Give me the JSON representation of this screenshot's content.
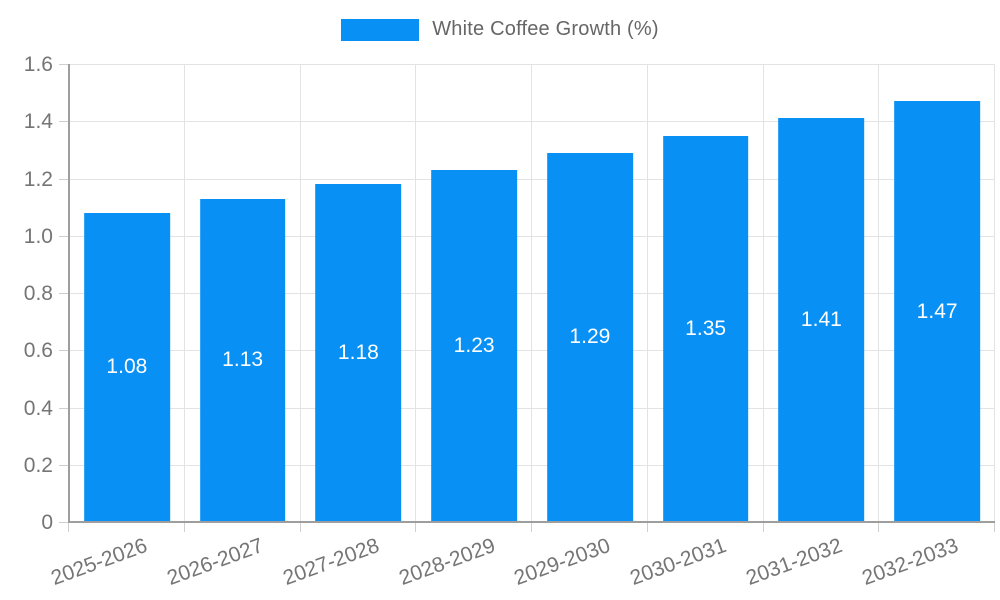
{
  "chart_data": {
    "type": "bar",
    "title": "",
    "legend": {
      "label": "White Coffee Growth (%)",
      "position": "top"
    },
    "categories": [
      "2025-2026",
      "2026-2027",
      "2027-2028",
      "2028-2029",
      "2029-2030",
      "2030-2031",
      "2031-2032",
      "2032-2033"
    ],
    "series": [
      {
        "name": "White Coffee Growth (%)",
        "values": [
          1.08,
          1.13,
          1.18,
          1.23,
          1.29,
          1.35,
          1.41,
          1.47
        ]
      }
    ],
    "bar_labels": [
      "1.08",
      "1.13",
      "1.18",
      "1.23",
      "1.29",
      "1.35",
      "1.41",
      "1.47"
    ],
    "ytick_labels": [
      "0",
      "0.2",
      "0.4",
      "0.6",
      "0.8",
      "1.0",
      "1.2",
      "1.4",
      "1.6"
    ],
    "xlabel": "",
    "ylabel": "",
    "ylim": [
      0,
      1.6
    ],
    "ytick_step": 0.2,
    "grid": true,
    "colors": {
      "bar": "#0890F5",
      "grid": "#E3E3E3",
      "tick": "#CFCFCF",
      "axis": "#9E9E9E",
      "axis_label": "#757575",
      "legend_text": "#666666",
      "bar_value_text": "#FFFFFF"
    }
  }
}
